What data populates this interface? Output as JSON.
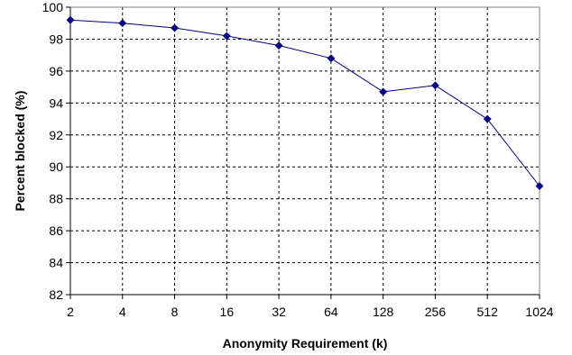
{
  "chart_data": {
    "type": "line",
    "title": "",
    "xlabel": "Anonymity Requirement (k)",
    "ylabel": "Percent blocked (%)",
    "categories": [
      "2",
      "4",
      "8",
      "16",
      "32",
      "64",
      "128",
      "256",
      "512",
      "1024"
    ],
    "series": [
      {
        "values": [
          99.2,
          99.0,
          98.7,
          98.2,
          97.6,
          96.8,
          94.7,
          95.1,
          93.0,
          88.8
        ],
        "color": "#000080",
        "marker": "diamond"
      }
    ],
    "ylim": [
      82,
      100
    ],
    "yticks": [
      "82",
      "84",
      "86",
      "88",
      "90",
      "92",
      "94",
      "96",
      "98",
      "100"
    ],
    "grid": true,
    "grid_style": "dashed",
    "legend": "none",
    "colors": {
      "line": "#000080",
      "marker": "#000080",
      "grid": "#000000",
      "plot_border": "#808080"
    }
  }
}
